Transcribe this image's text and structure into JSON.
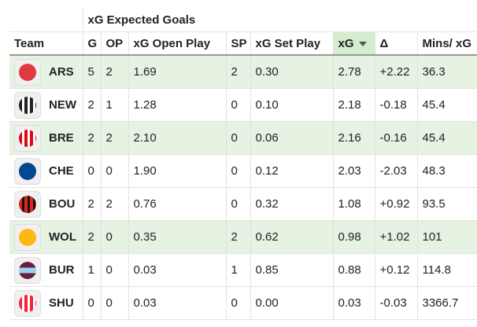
{
  "table": {
    "group_header": "xG Expected Goals",
    "columns": [
      "Team",
      "G",
      "OP",
      "xG Open Play",
      "SP",
      "xG Set Play",
      "xG",
      "Δ",
      "Mins/ xG"
    ],
    "rows": [
      [
        "ARS",
        "5",
        "2",
        "1.69",
        "2",
        "0.30",
        "2.78",
        "+2.22",
        "36.3"
      ],
      [
        "NEW",
        "2",
        "1",
        "1.28",
        "0",
        "0.10",
        "2.18",
        "-0.18",
        "45.4"
      ],
      [
        "BRE",
        "2",
        "2",
        "2.10",
        "0",
        "0.06",
        "2.16",
        "-0.16",
        "45.4"
      ],
      [
        "CHE",
        "0",
        "0",
        "1.90",
        "0",
        "0.12",
        "2.03",
        "-2.03",
        "48.3"
      ],
      [
        "BOU",
        "2",
        "2",
        "0.76",
        "0",
        "0.32",
        "1.08",
        "+0.92",
        "93.5"
      ],
      [
        "WOL",
        "2",
        "0",
        "0.35",
        "2",
        "0.62",
        "0.98",
        "+1.02",
        "101"
      ],
      [
        "BUR",
        "1",
        "0",
        "0.03",
        "1",
        "0.85",
        "0.88",
        "+0.12",
        "114.8"
      ],
      [
        "SHU",
        "0",
        "0",
        "0.03",
        "0",
        "0.00",
        "0.03",
        "-0.03",
        "3366.7"
      ]
    ]
  }
}
